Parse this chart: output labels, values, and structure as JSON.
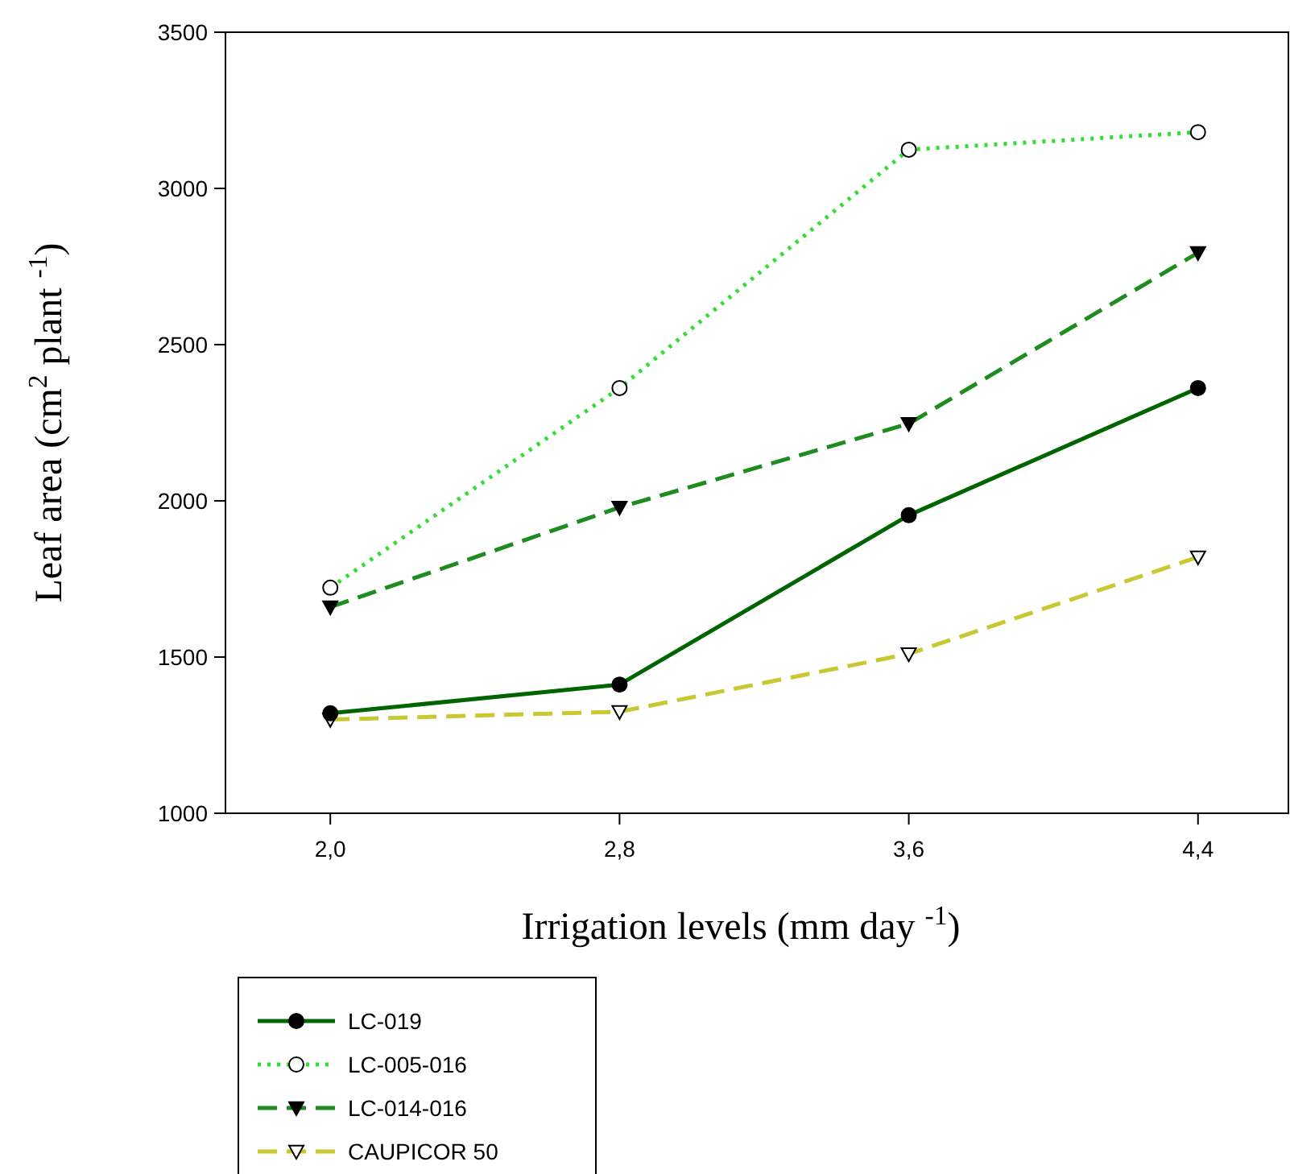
{
  "chart_data": {
    "type": "line",
    "xlabel": "Irrigation levels (mm day $^{-1}$)",
    "ylabel": "Leaf area (cm$^{2}$ plant $^{-1}$)",
    "x": [
      2.0,
      2.8,
      3.6,
      4.4
    ],
    "xlim": [
      1.71,
      4.65
    ],
    "xticks": [
      {
        "value": 2.0,
        "label": "2,0"
      },
      {
        "value": 2.8,
        "label": "2,8"
      },
      {
        "value": 3.6,
        "label": "3,6"
      },
      {
        "value": 4.4,
        "label": "4,4"
      }
    ],
    "ylim": [
      1000,
      3500
    ],
    "yticks": [
      1000,
      1500,
      2000,
      2500,
      3000,
      3500
    ],
    "grid": false,
    "legend": "bottom left",
    "series": [
      {
        "name": "LC-019",
        "color": "#006400",
        "values": [
          1320,
          1412,
          1954,
          2361
        ],
        "marker": "circle",
        "line_style": "solid"
      },
      {
        "name": "LC-005-016",
        "color": "#33dd33",
        "values": [
          1722,
          2361,
          3124,
          3180
        ],
        "marker": "circle",
        "line_style": "dotted"
      },
      {
        "name": "LC-014-016",
        "color": "#1e8c1e",
        "values": [
          1660,
          1979,
          2247,
          2794
        ],
        "marker": "triangle",
        "line_style": "dashed"
      },
      {
        "name": "CAUPICOR 50",
        "color": "#c8c832",
        "values": [
          1300,
          1325,
          1510,
          1820
        ],
        "marker": "triangle",
        "line_style": "dashed"
      }
    ]
  }
}
